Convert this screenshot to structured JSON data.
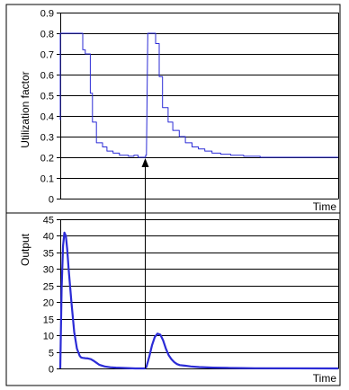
{
  "chart_data": [
    {
      "type": "line",
      "title": "",
      "xlabel": "Time",
      "ylabel": "Utilization factor",
      "ylim": [
        0,
        0.9
      ],
      "yticks": [
        "0",
        "0.1",
        "0.2",
        "0.3",
        "0.4",
        "0.5",
        "0.6",
        "0.7",
        "0.8",
        "0.9"
      ],
      "grid": true,
      "series": [
        {
          "color": "#2b2bd6",
          "x": [
            0,
            0,
            0.8,
            8.1,
            8.1,
            9.0,
            9.0,
            10.8,
            10.8,
            11.6,
            11.6,
            13.0,
            13.0,
            15.2,
            15.2,
            16.8,
            16.8,
            19.0,
            19.0,
            21.3,
            21.3,
            24.5,
            24.5,
            26.5,
            26.5,
            28.0,
            28.0,
            30.7,
            30.7,
            31.0,
            31.5,
            31.5,
            34.3,
            34.3,
            35.6,
            35.6,
            36.8,
            36.8,
            38.8,
            38.8,
            40.5,
            40.5,
            42.8,
            42.8,
            45.0,
            45.0,
            47.4,
            47.4,
            49.7,
            49.7,
            52.0,
            52.0,
            54.6,
            54.6,
            57.7,
            57.7,
            61.3,
            61.3,
            66.0,
            66.0,
            71.9,
            71.9,
            79.8,
            79.8,
            100
          ],
          "y": [
            0.38,
            0.8,
            0.8,
            0.8,
            0.72,
            0.72,
            0.7,
            0.7,
            0.51,
            0.51,
            0.37,
            0.37,
            0.27,
            0.27,
            0.25,
            0.25,
            0.23,
            0.23,
            0.22,
            0.22,
            0.21,
            0.21,
            0.205,
            0.205,
            0.21,
            0.21,
            0.2,
            0.2,
            0.21,
            0.21,
            0.8,
            0.8,
            0.8,
            0.75,
            0.75,
            0.59,
            0.59,
            0.44,
            0.44,
            0.37,
            0.37,
            0.33,
            0.33,
            0.3,
            0.3,
            0.27,
            0.27,
            0.25,
            0.25,
            0.24,
            0.24,
            0.23,
            0.23,
            0.22,
            0.22,
            0.215,
            0.215,
            0.21,
            0.21,
            0.205,
            0.205,
            0.2,
            0.2,
            0.2,
            0.2
          ]
        }
      ]
    },
    {
      "type": "line",
      "title": "",
      "xlabel": "Time",
      "ylabel": "Output",
      "ylim": [
        0,
        45
      ],
      "yticks": [
        "0",
        "5",
        "10",
        "15",
        "20",
        "25",
        "30",
        "35",
        "40",
        "45"
      ],
      "grid": true,
      "series": [
        {
          "color": "#2b2bd6",
          "x": [
            0,
            0.5,
            1.0,
            1.5,
            2.0,
            2.5,
            3.0,
            4.0,
            5.0,
            6.0,
            7.0,
            7.5,
            8.0,
            9.0,
            10.0,
            11.0,
            12.0,
            13.0,
            14.0,
            16.0,
            18.0,
            20.0,
            22.0,
            24.0,
            27.0,
            29.0,
            30.5,
            31.0,
            32.0,
            33.0,
            34.0,
            35.0,
            36.0,
            37.0,
            38.0,
            39.0,
            40.0,
            41.0,
            42.0,
            43.0,
            45.0,
            47.0,
            50.0,
            55.0,
            60.0,
            65.0,
            70.0,
            100
          ],
          "y": [
            0,
            24,
            37,
            41,
            40,
            36,
            30,
            20,
            11,
            6,
            3.8,
            3.3,
            3.2,
            3.1,
            3.0,
            2.8,
            2.3,
            1.7,
            1.1,
            0.6,
            0.35,
            0.25,
            0.2,
            0.1,
            0,
            0,
            0,
            0.5,
            3.5,
            7,
            9.5,
            10.5,
            10.2,
            8.5,
            6,
            4,
            2.8,
            1.9,
            1.3,
            1.0,
            0.8,
            0.6,
            0.4,
            0.25,
            0.15,
            0.1,
            0.05,
            0
          ]
        }
      ]
    }
  ],
  "annotation": {
    "arrow_from_time": 30.5,
    "arrow_color": "#000000"
  }
}
